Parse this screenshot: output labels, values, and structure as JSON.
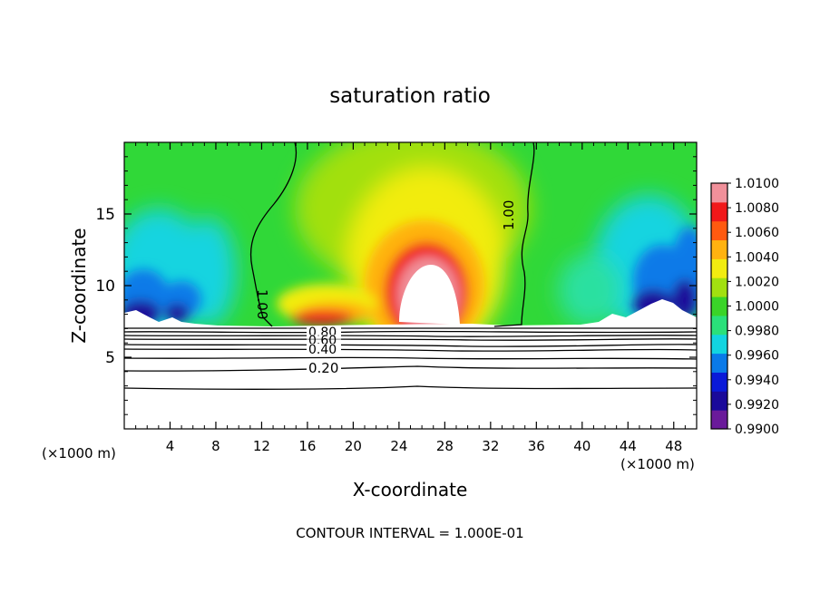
{
  "chart_data": {
    "type": "heatmap",
    "title": "saturation ratio",
    "xlabel": "X-coordinate",
    "ylabel": "Z-coordinate",
    "x_unit": "(×1000 m)",
    "y_unit": "(×1000 m)",
    "xlim": [
      0,
      50
    ],
    "ylim": [
      0,
      20
    ],
    "x_ticks": [
      4,
      8,
      12,
      16,
      20,
      24,
      28,
      32,
      36,
      40,
      44,
      48
    ],
    "y_ticks": [
      5,
      10,
      15
    ],
    "footer": "CONTOUR INTERVAL = 1.000E-01",
    "colorbar": {
      "min": 0.99,
      "max": 1.01,
      "labels": [
        "1.0100",
        "1.0080",
        "1.0060",
        "1.0040",
        "1.0020",
        "1.0000",
        "0.9980",
        "0.9960",
        "0.9940",
        "0.9920",
        "0.9900"
      ],
      "colors": [
        "#6a1a9a",
        "#1a0a9a",
        "#0a1ad8",
        "#0a7ae8",
        "#12d4e0",
        "#2ae07a",
        "#3ad428",
        "#a2e010",
        "#f2ec10",
        "#ffb210",
        "#ff5a10",
        "#f0181a",
        "#f0909a"
      ]
    },
    "contour_labels": {
      "isoline_1_left": "1.00",
      "isoline_1_right": "1.00",
      "low_a": "0.80",
      "low_b": "0.60",
      "low_c": "0.40",
      "low_d": "0.20"
    }
  }
}
